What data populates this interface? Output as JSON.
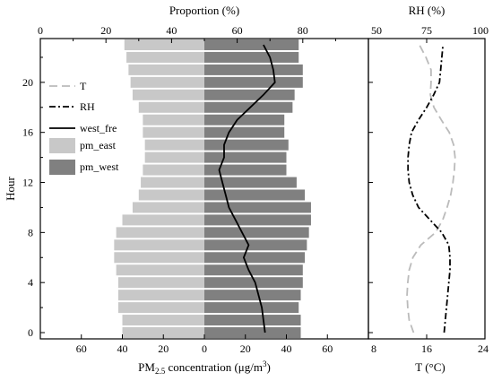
{
  "chart_data": [
    {
      "type": "bar",
      "orientation": "horizontal",
      "bidirectional": true,
      "xlabel_bottom": "PM2.5 concentration (μg/m³)",
      "xlabel_bottom_parts": {
        "pre": "PM",
        "sub": "2.5",
        "mid": " concentration (μg/m",
        "sup": "3",
        "post": ")"
      },
      "xlabel_top": "Proportion (%)",
      "ylabel": "Hour",
      "x_bottom_ticks": [
        "60",
        "40",
        "20",
        "0",
        "20",
        "40",
        "60"
      ],
      "x_top_ticks": [
        "0",
        "20",
        "40",
        "60",
        "80"
      ],
      "y_ticks": [
        "0",
        "4",
        "8",
        "12",
        "16",
        "20"
      ],
      "xlim_bottom": [
        -80,
        80
      ],
      "xlim_top": [
        0,
        100
      ],
      "ylim": [
        -0.5,
        23.5
      ],
      "hours": [
        0,
        1,
        2,
        3,
        4,
        5,
        6,
        7,
        8,
        9,
        10,
        11,
        12,
        13,
        14,
        15,
        16,
        17,
        18,
        19,
        20,
        21,
        22,
        23
      ],
      "series": [
        {
          "name": "pm_east",
          "color": "#c8c8c8",
          "side": "left",
          "values": [
            40,
            40,
            42,
            42,
            42,
            43,
            44,
            44,
            43,
            40,
            35,
            32,
            31,
            30,
            29,
            29,
            30,
            30,
            32,
            35,
            36,
            37,
            38,
            39
          ]
        },
        {
          "name": "pm_west",
          "color": "#808080",
          "side": "right",
          "values": [
            47,
            47,
            46,
            47,
            48,
            48,
            49,
            50,
            51,
            52,
            52,
            49,
            45,
            40,
            40,
            41,
            39,
            39,
            43,
            44,
            48,
            48,
            46,
            46
          ]
        },
        {
          "name": "west_fre",
          "color": "#000000",
          "kind": "line",
          "dash": "solid",
          "axis": "top",
          "values": [
            68.5,
            68,
            67.5,
            66.5,
            65.5,
            63.5,
            62,
            63.5,
            61.5,
            59.5,
            57.5,
            56.5,
            55.5,
            54.5,
            56,
            56,
            57.5,
            60,
            64,
            68,
            71.5,
            71,
            70,
            68
          ]
        }
      ],
      "legend_position": "upper-left"
    },
    {
      "type": "line",
      "xlabel_top": "RH (%)",
      "xlabel_bottom": "T (°C)",
      "x_top_ticks": [
        "50",
        "75",
        "100"
      ],
      "x_bottom_ticks": [
        "8",
        "16",
        "24"
      ],
      "xlim_top": [
        50,
        100
      ],
      "xlim_bottom": [
        8,
        24
      ],
      "ylim": [
        -0.5,
        23.5
      ],
      "hours": [
        0,
        1,
        2,
        3,
        4,
        5,
        6,
        7,
        8,
        9,
        10,
        11,
        12,
        13,
        14,
        15,
        16,
        17,
        18,
        19,
        20,
        21,
        22,
        23
      ],
      "series": [
        {
          "name": "T",
          "color": "#bbbbbb",
          "dash": "long-dash",
          "axis": "bottom",
          "values": [
            14.2,
            13.6,
            13.4,
            13.3,
            13.4,
            13.6,
            14.1,
            15.2,
            17.2,
            18.2,
            18.8,
            19.3,
            19.6,
            19.8,
            19.9,
            19.7,
            19.1,
            18.0,
            17.0,
            16.5,
            16.6,
            16.6,
            15.9,
            15.0
          ]
        },
        {
          "name": "RH",
          "color": "#000000",
          "dash": "dash-dot",
          "axis": "top",
          "values": [
            82.5,
            83,
            83.5,
            84,
            84.5,
            85,
            85,
            84.5,
            81.5,
            76.5,
            71.5,
            69,
            67.5,
            67,
            67,
            67.5,
            68.5,
            71.5,
            75,
            78,
            80.5,
            81,
            81.5,
            82
          ]
        }
      ]
    }
  ]
}
